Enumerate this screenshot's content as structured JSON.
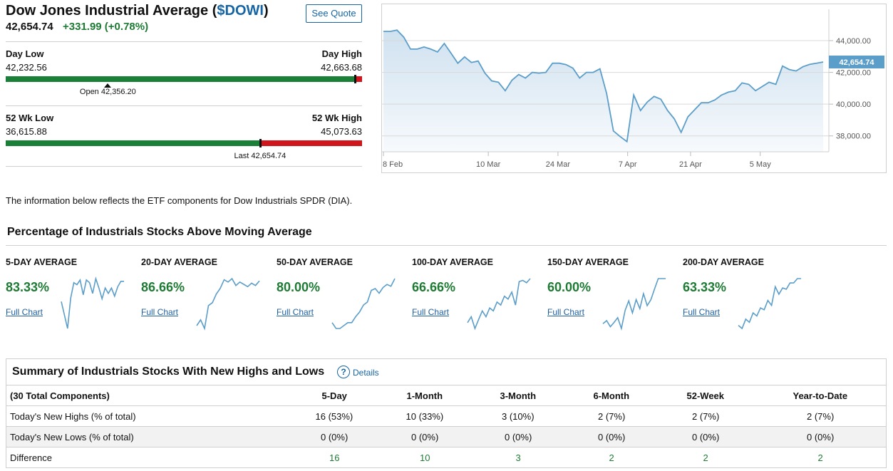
{
  "quote": {
    "title_prefix": "Dow Jones Industrial Average (",
    "symbol": "$DOWI",
    "title_suffix": ")",
    "button": "See Quote",
    "last": "42,654.74",
    "change": "+331.99 (+0.78%)"
  },
  "day_range": {
    "low_label": "Day Low",
    "high_label": "Day High",
    "low_text": "42,232.56",
    "high_text": "42,663.68",
    "low": 42232.56,
    "high": 42663.68,
    "open": 42356.2,
    "last": 42654.74,
    "marker_label": "Open 42,356.20"
  },
  "week52_range": {
    "low_label": "52 Wk Low",
    "high_label": "52 Wk High",
    "low_text": "36,615.88",
    "high_text": "45,073.63",
    "low": 36615.88,
    "high": 45073.63,
    "last": 42654.74,
    "marker_label": "Last 42,654.74"
  },
  "price_chart": {
    "type": "area",
    "values": [
      44578,
      44578,
      44667,
      44222,
      43467,
      43467,
      43600,
      43467,
      43289,
      43822,
      43200,
      42578,
      42978,
      42622,
      42711,
      41956,
      41467,
      41378,
      40844,
      41511,
      41867,
      41644,
      42000,
      41956,
      42000,
      42578,
      42578,
      42489,
      42267,
      41644,
      42000,
      42000,
      42222,
      40667,
      38311,
      37956,
      37644,
      40578,
      39600,
      40133,
      40489,
      40311,
      39600,
      39067,
      38222,
      39200,
      39644,
      40089,
      40089,
      40267,
      40578,
      40756,
      40844,
      41333,
      41244,
      40844,
      41111,
      41378,
      41244,
      42400,
      42178,
      42089,
      42356,
      42500,
      42580,
      42654.74
    ],
    "xlim": [
      0,
      65
    ],
    "xticks": [
      {
        "value": 0,
        "label": "8 Feb"
      },
      {
        "value": 15.5,
        "label": "10 Mar"
      },
      {
        "value": 25.8,
        "label": "24 Mar"
      },
      {
        "value": 36.1,
        "label": "7 Apr"
      },
      {
        "value": 45.4,
        "label": "21 Apr"
      },
      {
        "value": 55.7,
        "label": "5 May"
      }
    ],
    "ylim": [
      37000,
      46200
    ],
    "yticks": [
      {
        "value": 38000,
        "label": "38,000.00"
      },
      {
        "value": 40000,
        "label": "40,000.00"
      },
      {
        "value": 42000,
        "label": "42,000.00"
      },
      {
        "value": 44000,
        "label": "44,000.00"
      }
    ],
    "grid": true,
    "color": "#5b9ec9",
    "last_label": "42,654.74"
  },
  "note": "The information below reflects the ETF components for Dow Industrials SPDR (DIA).",
  "moving_average": {
    "title": "Percentage of Industrials Stocks Above Moving Average",
    "items": [
      {
        "label": "5-DAY AVERAGE",
        "value": "83.33%",
        "link": "Full Chart",
        "spark": [
          50,
          30,
          10,
          55,
          78,
          75,
          82,
          60,
          82,
          78,
          62,
          84,
          70,
          54,
          70,
          62,
          70,
          58,
          72,
          80,
          80
        ]
      },
      {
        "label": "20-DAY AVERAGE",
        "value": "86.66%",
        "link": "Full Chart",
        "spark": [
          10,
          20,
          5,
          45,
          50,
          65,
          75,
          90,
          86,
          92,
          80,
          86,
          82,
          78,
          84,
          80,
          88
        ]
      },
      {
        "label": "50-DAY AVERAGE",
        "value": "80.00%",
        "link": "Full Chart",
        "spark": [
          20,
          10,
          10,
          15,
          20,
          20,
          30,
          38,
          50,
          55,
          75,
          78,
          70,
          80,
          85,
          82,
          95
        ]
      },
      {
        "label": "100-DAY AVERAGE",
        "value": "66.66%",
        "link": "Full Chart",
        "spark": [
          20,
          30,
          10,
          25,
          40,
          30,
          45,
          40,
          55,
          50,
          65,
          60,
          72,
          50,
          90,
          92,
          88,
          95
        ]
      },
      {
        "label": "150-DAY AVERAGE",
        "value": "60.00%",
        "link": "Full Chart",
        "spark": [
          20,
          25,
          15,
          22,
          30,
          12,
          42,
          58,
          38,
          60,
          45,
          70,
          50,
          60,
          78,
          95,
          95,
          95
        ]
      },
      {
        "label": "200-DAY AVERAGE",
        "value": "63.33%",
        "link": "Full Chart",
        "spark": [
          20,
          15,
          30,
          25,
          40,
          35,
          48,
          45,
          60,
          52,
          82,
          70,
          80,
          78,
          88,
          88,
          95,
          95
        ]
      }
    ],
    "spark_color": "#5b9ec9"
  },
  "highs_lows": {
    "title": "Summary of Industrials Stocks With New Highs and Lows",
    "details": "Details",
    "columns": [
      "(30 Total Components)",
      "5-Day",
      "1-Month",
      "3-Month",
      "6-Month",
      "52-Week",
      "Year-to-Date"
    ],
    "rows": [
      [
        "Today's New Highs (% of total)",
        "16 (53%)",
        "10 (33%)",
        "3 (10%)",
        "2 (7%)",
        "2 (7%)",
        "2 (7%)"
      ],
      [
        "Today's New Lows (% of total)",
        "0 (0%)",
        "0 (0%)",
        "0 (0%)",
        "0 (0%)",
        "0 (0%)",
        "0 (0%)"
      ],
      [
        "Difference",
        "16",
        "10",
        "3",
        "2",
        "2",
        "2"
      ]
    ]
  }
}
